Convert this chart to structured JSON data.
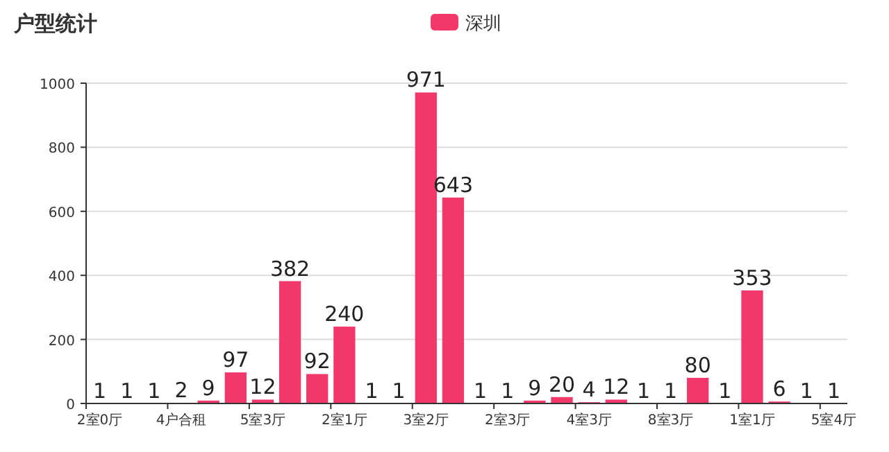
{
  "chart_data": {
    "type": "bar",
    "title": "户型统计",
    "legend": "top",
    "categories": [
      "2室0厅",
      null,
      null,
      "4户合租",
      null,
      null,
      "5室3厅",
      null,
      null,
      "2室1厅",
      null,
      null,
      "3室2厅",
      null,
      null,
      "2室3厅",
      null,
      null,
      "4室3厅",
      null,
      null,
      "8室3厅",
      null,
      null,
      "1室1厅",
      null,
      null,
      "5室4厅"
    ],
    "series": [
      {
        "name": "深圳",
        "color": "#f2386a",
        "values": [
          1,
          1,
          1,
          2,
          9,
          97,
          12,
          382,
          92,
          240,
          1,
          1,
          971,
          643,
          1,
          1,
          9,
          20,
          4,
          12,
          1,
          1,
          80,
          1,
          353,
          6,
          1,
          1
        ]
      }
    ],
    "ylim": [
      0,
      1000
    ],
    "yticks": [
      0,
      200,
      400,
      600,
      800,
      1000
    ],
    "grid": "y",
    "data_labels": true
  }
}
